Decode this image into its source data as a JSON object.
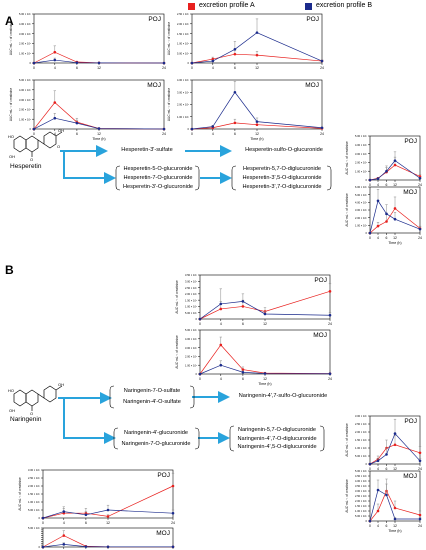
{
  "legend": [
    {
      "label": "excretion profile A",
      "color": "#e8201e"
    },
    {
      "label": "excretion profile B",
      "color": "#1b2b8c"
    }
  ],
  "sections": [
    {
      "letter": "A",
      "parent": "Hesperetin",
      "sulfate": "Hesperetin-3'-sulfate",
      "sulfo_glucuronide": "Hesperetin-sulfo-O-glucuronide",
      "glucuronides": [
        "Hesperetin-5-O-glucuronide",
        "Hesperetin-7-O-glucuronide",
        "Hesperetin-3'-O-glucuronide"
      ],
      "diglucuronides": [
        "Hesperetin-5,7-O-diglucuronide",
        "Hesperetin-3',5-O-diglucuronide",
        "Hesperetin-3',7-O-diglucuronide"
      ]
    },
    {
      "letter": "B",
      "parent": "Naringenin",
      "sulfates": [
        "Naringenin-7-O-sulfate",
        "Naringenin-4'-O-sulfate"
      ],
      "sulfo_glucuronide": "Naringenin-4',7-sulfo-O-glucuronide",
      "glucuronides": [
        "Naringenin-4'-glucuronide",
        "Naringenin-7-O-glucuronide"
      ],
      "diglucuronides": [
        "Naringenin-5,7-O-diglucuronide",
        "Naringenin-4',7-O-diglucuronide",
        "Naringenin-4',5-O-diglucuronide"
      ]
    }
  ],
  "chart_data": [
    {
      "type": "line",
      "id": "A-sulf-POJ",
      "panel": "POJ",
      "xlabel": "",
      "ylabel": "AUC·mL⁻¹ of creatinine",
      "x": [
        0,
        4,
        6,
        12,
        24
      ],
      "xticks": [
        "0",
        "4",
        "6",
        "12",
        "24"
      ],
      "ylim": [
        0,
        5000000
      ],
      "yticks": [
        "0",
        "1.00 × 10⁶",
        "2.00 × 10⁶",
        "3.00 × 10⁶",
        "4.00 × 10⁶",
        "5.00 × 10⁶"
      ],
      "series": [
        {
          "color": "#e8201e",
          "values": [
            0,
            1100000,
            100000,
            20000,
            0
          ],
          "err": [
            0,
            650000,
            50000,
            10000,
            0
          ]
        },
        {
          "color": "#1b2b8c",
          "values": [
            0,
            300000,
            30000,
            10000,
            0
          ],
          "err": [
            0,
            200000,
            20000,
            5000,
            0
          ]
        }
      ]
    },
    {
      "type": "line",
      "id": "A-sulf-MOJ",
      "panel": "MOJ",
      "xlabel": "Time (h)",
      "ylabel": "AUC·mL⁻¹ of creatinine",
      "x": [
        0,
        4,
        6,
        12,
        24
      ],
      "xticks": [
        "0",
        "4",
        "6",
        "12",
        "24"
      ],
      "ylim": [
        0,
        5000000
      ],
      "yticks": [
        "0",
        "1.00 × 10⁶",
        "2.00 × 10⁶",
        "3.00 × 10⁶",
        "4.00 × 10⁶",
        "5.00 × 10⁶"
      ],
      "series": [
        {
          "color": "#e8201e",
          "values": [
            0,
            2700000,
            700000,
            50000,
            0
          ],
          "err": [
            0,
            1200000,
            400000,
            30000,
            0
          ]
        },
        {
          "color": "#1b2b8c",
          "values": [
            0,
            1100000,
            600000,
            40000,
            0
          ],
          "err": [
            0,
            500000,
            300000,
            20000,
            0
          ]
        }
      ]
    },
    {
      "type": "line",
      "id": "A-sg-POJ",
      "panel": "POJ",
      "xlabel": "",
      "ylabel": "AUC·mL⁻¹ of creatinine",
      "x": [
        0,
        4,
        6,
        12,
        24
      ],
      "xticks": [
        "0",
        "4",
        "6",
        "12",
        "24"
      ],
      "ylim": [
        0,
        2500000
      ],
      "yticks": [
        "0",
        "5.00 × 10⁵",
        "1.00 × 10⁶",
        "1.50 × 10⁶",
        "2.00 × 10⁶",
        "2.50 × 10⁶"
      ],
      "series": [
        {
          "color": "#e8201e",
          "values": [
            0,
            200000,
            450000,
            400000,
            100000
          ],
          "err": [
            0,
            100000,
            200000,
            200000,
            50000
          ]
        },
        {
          "color": "#1b2b8c",
          "values": [
            0,
            100000,
            700000,
            1550000,
            100000
          ],
          "err": [
            0,
            50000,
            400000,
            700000,
            50000
          ]
        }
      ]
    },
    {
      "type": "line",
      "id": "A-sg-MOJ",
      "panel": "MOJ",
      "xlabel": "Time (h)",
      "ylabel": "AUC·mL⁻¹ of creatinine",
      "x": [
        0,
        4,
        6,
        12,
        24
      ],
      "xticks": [
        "0",
        "4",
        "6",
        "12",
        "24"
      ],
      "ylim": [
        0,
        4000000
      ],
      "yticks": [
        "0",
        "1.00 × 10⁶",
        "2.00 × 10⁶",
        "3.00 × 10⁶",
        "4.00 × 10⁶"
      ],
      "series": [
        {
          "color": "#e8201e",
          "values": [
            0,
            100000,
            500000,
            350000,
            50000
          ],
          "err": [
            0,
            50000,
            300000,
            200000,
            30000
          ]
        },
        {
          "color": "#1b2b8c",
          "values": [
            0,
            200000,
            3000000,
            600000,
            100000
          ],
          "err": [
            0,
            100000,
            900000,
            300000,
            50000
          ]
        }
      ]
    },
    {
      "type": "line",
      "id": "A-dg-POJ",
      "panel": "POJ",
      "xlabel": "",
      "ylabel": "AUC·mL⁻¹ of creatinine",
      "x": [
        0,
        4,
        6,
        12,
        24
      ],
      "xticks": [
        "0",
        "4",
        "6",
        "12",
        "24"
      ],
      "ylim": [
        0,
        5000000
      ],
      "yticks": [
        "0",
        "1.00 × 10⁶",
        "2.00 × 10⁶",
        "3.00 × 10⁶",
        "4.00 × 10⁶",
        "5.00 × 10⁶"
      ],
      "series": [
        {
          "color": "#e8201e",
          "values": [
            0,
            200000,
            900000,
            1700000,
            400000
          ],
          "err": [
            0,
            100000,
            500000,
            900000,
            200000
          ]
        },
        {
          "color": "#1b2b8c",
          "values": [
            0,
            150000,
            1000000,
            2200000,
            200000
          ],
          "err": [
            0,
            80000,
            600000,
            1000000,
            100000
          ]
        }
      ]
    },
    {
      "type": "line",
      "id": "A-dg-MOJ",
      "panel": "MOJ",
      "xlabel": "Time (h)",
      "ylabel": "AUC·mL⁻¹ of creatinine",
      "x": [
        0,
        4,
        6,
        12,
        24
      ],
      "xticks": [
        "0",
        "4",
        "6",
        "12",
        "24"
      ],
      "ylim": [
        0,
        6000000
      ],
      "yticks": [
        "0",
        "1.00 × 10⁶",
        "2.00 × 10⁶",
        "3.00 × 10⁶",
        "4.00 × 10⁶",
        "5.00 × 10⁶",
        "6.00 × 10⁶"
      ],
      "series": [
        {
          "color": "#e8201e",
          "values": [
            0,
            900000,
            1500000,
            3200000,
            600000
          ],
          "err": [
            0,
            500000,
            900000,
            1500000,
            300000
          ]
        },
        {
          "color": "#1b2b8c",
          "values": [
            0,
            4200000,
            2500000,
            1800000,
            500000
          ],
          "err": [
            0,
            1500000,
            1200000,
            900000,
            300000
          ]
        }
      ]
    },
    {
      "type": "line",
      "id": "B-sg-POJ",
      "panel": "POJ",
      "xlabel": "",
      "ylabel": "AUC·mL⁻¹ of creatinine",
      "x": [
        0,
        4,
        6,
        12,
        24
      ],
      "xticks": [
        "0",
        "4",
        "6",
        "12",
        "24"
      ],
      "ylim": [
        0,
        3500000
      ],
      "yticks": [
        "0",
        "5.00 × 10⁵",
        "1.00 × 10⁶",
        "1.50 × 10⁶",
        "2.00 × 10⁶",
        "2.50 × 10⁶",
        "3.00 × 10⁶",
        "3.50 × 10⁶"
      ],
      "series": [
        {
          "color": "#e8201e",
          "values": [
            0,
            800000,
            1000000,
            600000,
            2200000
          ],
          "err": [
            0,
            600000,
            500000,
            300000,
            600000
          ]
        },
        {
          "color": "#1b2b8c",
          "values": [
            0,
            1200000,
            1400000,
            400000,
            300000
          ],
          "err": [
            0,
            1200000,
            600000,
            200000,
            200000
          ]
        }
      ]
    },
    {
      "type": "line",
      "id": "B-sg-MOJ",
      "panel": "MOJ",
      "xlabel": "Time (h)",
      "ylabel": "AUC·mL⁻¹ of creatinine",
      "x": [
        0,
        4,
        6,
        12,
        24
      ],
      "xticks": [
        "0",
        "4",
        "6",
        "12",
        "24"
      ],
      "ylim": [
        0,
        5000000
      ],
      "yticks": [
        "0",
        "1.00 × 10⁶",
        "2.00 × 10⁶",
        "3.00 × 10⁶",
        "4.00 × 10⁶",
        "5.00 × 10⁶"
      ],
      "series": [
        {
          "color": "#e8201e",
          "values": [
            0,
            3300000,
            500000,
            100000,
            50000
          ],
          "err": [
            0,
            900000,
            300000,
            50000,
            30000
          ]
        },
        {
          "color": "#1b2b8c",
          "values": [
            0,
            1000000,
            200000,
            50000,
            30000
          ],
          "err": [
            0,
            500000,
            150000,
            30000,
            20000
          ]
        }
      ]
    },
    {
      "type": "line",
      "id": "B-dg-POJ",
      "panel": "POJ",
      "xlabel": "",
      "ylabel": "AUC·mL⁻¹ of creatinine",
      "x": [
        0,
        4,
        6,
        12,
        24
      ],
      "xticks": [
        "0",
        "4",
        "6",
        "12",
        "24"
      ],
      "ylim": [
        0,
        3000000
      ],
      "yticks": [
        "0",
        "5.00 × 10⁵",
        "1.00 × 10⁶",
        "1.50 × 10⁶",
        "2.00 × 10⁶",
        "2.50 × 10⁶",
        "3.00 × 10⁶"
      ],
      "series": [
        {
          "color": "#e8201e",
          "values": [
            0,
            300000,
            1000000,
            1200000,
            700000
          ],
          "err": [
            0,
            200000,
            500000,
            600000,
            400000
          ]
        },
        {
          "color": "#1b2b8c",
          "values": [
            0,
            200000,
            600000,
            1900000,
            200000
          ],
          "err": [
            0,
            150000,
            400000,
            900000,
            150000
          ]
        }
      ]
    },
    {
      "type": "line",
      "id": "B-dg-MOJ",
      "panel": "MOJ",
      "xlabel": "Time (h)",
      "ylabel": "AUC·mL⁻¹ of creatinine",
      "x": [
        0,
        4,
        6,
        12,
        24
      ],
      "xticks": [
        "0",
        "4",
        "6",
        "12",
        "24"
      ],
      "ylim": [
        0,
        5000000
      ],
      "yticks": [
        "0",
        "5.00 × 10⁵",
        "1.00 × 10⁶",
        "1.50 × 10⁶",
        "2.00 × 10⁶",
        "2.50 × 10⁶",
        "3.00 × 10⁶",
        "3.50 × 10⁶",
        "4.00 × 10⁶",
        "4.50 × 10⁶",
        "5.00 × 10⁶"
      ],
      "series": [
        {
          "color": "#e8201e",
          "values": [
            0,
            1000000,
            3000000,
            1300000,
            600000
          ],
          "err": [
            0,
            700000,
            1200000,
            700000,
            400000
          ]
        },
        {
          "color": "#1b2b8c",
          "values": [
            0,
            3100000,
            2600000,
            200000,
            200000
          ],
          "err": [
            0,
            1000000,
            1100000,
            150000,
            150000
          ]
        }
      ]
    },
    {
      "type": "line",
      "id": "B-g-POJ",
      "panel": "POJ",
      "xlabel": "",
      "ylabel": "AUC·mL⁻¹ of creatinine",
      "x": [
        0,
        4,
        6,
        12,
        24
      ],
      "xticks": [
        "0",
        "4",
        "6",
        "12",
        "24"
      ],
      "ylim": [
        0,
        3000000
      ],
      "yticks": [
        "0",
        "5.00 × 10⁵",
        "1.00 × 10⁶",
        "1.50 × 10⁶",
        "2.00 × 10⁶",
        "2.50 × 10⁶",
        "3.00 × 10⁶"
      ],
      "series": [
        {
          "color": "#e8201e",
          "values": [
            0,
            300000,
            300000,
            100000,
            2000000
          ],
          "err": [
            0,
            300000,
            300000,
            100000,
            800000
          ]
        },
        {
          "color": "#1b2b8c",
          "values": [
            0,
            400000,
            200000,
            500000,
            300000
          ],
          "err": [
            0,
            300000,
            200000,
            300000,
            200000
          ]
        }
      ]
    },
    {
      "type": "line",
      "id": "B-g-MOJ",
      "panel": "MOJ",
      "xlabel": "Time (h)",
      "ylabel": "AUC·mL⁻¹ of creatinine",
      "x": [
        0,
        4,
        6,
        12,
        24
      ],
      "xticks": [
        "0",
        "4",
        "6",
        "12",
        "24"
      ],
      "ylim": [
        0,
        5000000
      ],
      "yticks": [
        "0",
        "5.00 × 10⁵",
        "1.00 × 10⁶",
        "1.50 × 10⁶",
        "2.00 × 10⁶",
        "2.50 × 10⁶",
        "3.00 × 10⁶",
        "3.50 × 10⁶",
        "4.00 × 10⁶",
        "4.50 × 10⁶",
        "5.00 × 10⁶"
      ],
      "series": [
        {
          "color": "#e8201e",
          "values": [
            0,
            3000000,
            200000,
            50000,
            50000
          ],
          "err": [
            0,
            1300000,
            150000,
            40000,
            30000
          ]
        },
        {
          "color": "#1b2b8c",
          "values": [
            0,
            700000,
            100000,
            50000,
            50000
          ],
          "err": [
            0,
            400000,
            80000,
            40000,
            30000
          ]
        }
      ]
    }
  ]
}
